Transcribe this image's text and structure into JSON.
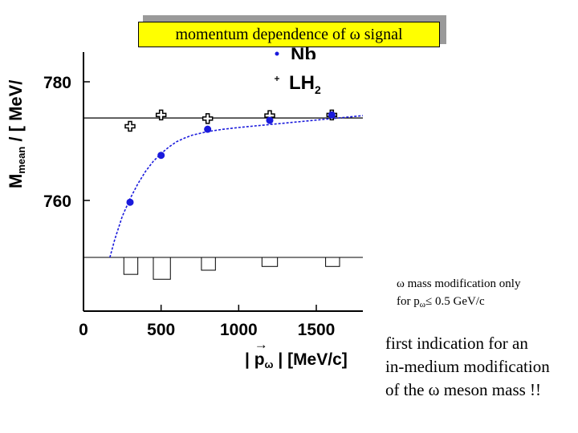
{
  "title": "momentum dependence of ω signal",
  "note_small": [
    "ω mass modification only",
    "for p",
    "ω",
    "≤ 0.5 GeV/c"
  ],
  "note_large": [
    "first indication for an",
    "in-medium modification",
    "of the ω meson mass !!"
  ],
  "chart_data": {
    "type": "scatter",
    "xlabel_parts": [
      "| ",
      "p",
      "ω",
      " | [MeV/c]"
    ],
    "ylabel_parts": [
      "M",
      "mean",
      " / [ MeV/"
    ],
    "x_ticks": [
      "0",
      "500",
      "1000",
      "1500"
    ],
    "y_ticks": [
      "760",
      "780"
    ],
    "xlim": [
      0,
      1800
    ],
    "ylim": [
      750.4,
      785
    ],
    "legend": [
      {
        "label": "Nb",
        "marker": "filled-circle",
        "color": "#1a1adc"
      },
      {
        "label": "LH",
        "label_sub": "2",
        "marker": "open-cross",
        "color": "#000000"
      }
    ],
    "series": [
      {
        "name": "Nb",
        "x": [
          300,
          500,
          800,
          1200,
          1600
        ],
        "y": [
          759.7,
          767.6,
          772.0,
          773.5,
          774.4
        ]
      },
      {
        "name": "LH2",
        "x": [
          300,
          500,
          800,
          1200,
          1600
        ],
        "y": [
          772.5,
          774.4,
          773.8,
          774.3,
          774.4
        ]
      }
    ],
    "reference_line_y": 773.9,
    "fit_curve": {
      "style": "dashed",
      "color": "#1a1adc",
      "x": [
        170,
        200,
        250,
        300,
        350,
        400,
        450,
        500,
        550,
        600,
        650,
        700,
        800,
        900,
        1000,
        1200,
        1400,
        1600,
        1800
      ],
      "y": [
        750.4,
        753.3,
        757.3,
        760.3,
        762.8,
        764.9,
        766.6,
        767.9,
        769.0,
        769.9,
        770.5,
        771.0,
        771.6,
        772.0,
        772.3,
        772.8,
        773.3,
        773.8,
        774.3
      ]
    },
    "difference_bars": [
      {
        "x0": 260,
        "x1": 350,
        "value": -4.5
      },
      {
        "x0": 450,
        "x1": 560,
        "value": -5.8
      },
      {
        "x0": 760,
        "x1": 850,
        "value": -3.4
      },
      {
        "x0": 1150,
        "x1": 1250,
        "value": -2.4
      },
      {
        "x0": 1560,
        "x1": 1650,
        "value": -2.4
      }
    ]
  }
}
